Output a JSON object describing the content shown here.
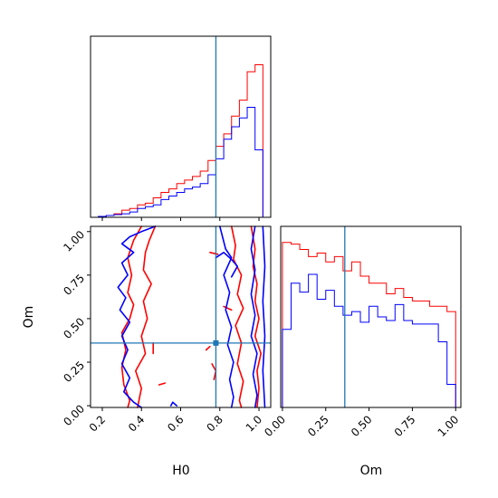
{
  "colors": {
    "series_a": "#ff0000",
    "series_b": "#0000ff",
    "truth": "#1f77b4"
  },
  "chart_data": [
    {
      "panel": "H0 marginal",
      "type": "step-histogram",
      "xlim": [
        0.14,
        1.06
      ],
      "bin_edges": [
        0.18,
        0.22,
        0.26,
        0.3,
        0.34,
        0.38,
        0.42,
        0.46,
        0.5,
        0.54,
        0.58,
        0.62,
        0.66,
        0.7,
        0.74,
        0.78,
        0.82,
        0.86,
        0.9,
        0.94,
        0.98,
        1.02
      ],
      "series": [
        {
          "color": "#ff0000",
          "values": [
            0.005,
            0.01,
            0.02,
            0.04,
            0.05,
            0.07,
            0.08,
            0.11,
            0.14,
            0.16,
            0.19,
            0.21,
            0.23,
            0.26,
            0.32,
            0.4,
            0.47,
            0.57,
            0.66,
            0.82,
            0.86
          ]
        },
        {
          "color": "#0000ff",
          "values": [
            0.005,
            0.01,
            0.015,
            0.02,
            0.03,
            0.05,
            0.06,
            0.07,
            0.1,
            0.12,
            0.14,
            0.16,
            0.17,
            0.19,
            0.24,
            0.33,
            0.44,
            0.51,
            0.56,
            0.62,
            0.38
          ]
        }
      ],
      "truth_x": 0.78,
      "xticks": [
        0.2,
        0.4,
        0.6,
        0.8,
        1.0
      ]
    },
    {
      "panel": "H0 vs Om joint",
      "type": "contour",
      "xlim": [
        0.14,
        1.06
      ],
      "ylim": [
        -0.01,
        1.03
      ],
      "xlabel": "H0",
      "ylabel": "Om",
      "xticks": [
        0.2,
        0.4,
        0.6,
        0.8,
        1.0
      ],
      "xticklabels": [
        "0.2",
        "0.4",
        "0.6",
        "0.8",
        "1.0"
      ],
      "yticks": [
        0.0,
        0.25,
        0.5,
        0.75,
        1.0
      ],
      "yticklabels": [
        "0.00",
        "0.25",
        "0.50",
        "0.75",
        "1.00"
      ],
      "truth": {
        "x": 0.78,
        "y": 0.36
      },
      "series": [
        {
          "color": "#ff0000",
          "contours": [
            [
              [
                0.4,
                1.03
              ],
              [
                0.36,
                0.95
              ],
              [
                0.33,
                0.85
              ],
              [
                0.35,
                0.75
              ],
              [
                0.33,
                0.65
              ],
              [
                0.36,
                0.58
              ],
              [
                0.34,
                0.5
              ],
              [
                0.3,
                0.42
              ],
              [
                0.32,
                0.32
              ],
              [
                0.3,
                0.22
              ],
              [
                0.31,
                0.12
              ],
              [
                0.34,
                0.03
              ],
              [
                0.33,
                -0.01
              ]
            ],
            [
              [
                0.47,
                1.03
              ],
              [
                0.44,
                0.95
              ],
              [
                0.42,
                0.88
              ],
              [
                0.41,
                0.78
              ],
              [
                0.45,
                0.7
              ],
              [
                0.41,
                0.6
              ],
              [
                0.43,
                0.5
              ],
              [
                0.4,
                0.4
              ],
              [
                0.42,
                0.3
              ],
              [
                0.37,
                0.2
              ],
              [
                0.4,
                0.1
              ],
              [
                0.38,
                -0.01
              ]
            ],
            [
              [
                0.86,
                1.03
              ],
              [
                0.88,
                0.92
              ],
              [
                0.87,
                0.84
              ],
              [
                0.91,
                0.75
              ],
              [
                0.89,
                0.64
              ],
              [
                0.92,
                0.56
              ],
              [
                0.88,
                0.46
              ],
              [
                0.91,
                0.36
              ],
              [
                0.89,
                0.24
              ],
              [
                0.92,
                0.14
              ],
              [
                0.9,
                0.03
              ],
              [
                0.91,
                -0.01
              ]
            ],
            [
              [
                0.96,
                1.03
              ],
              [
                0.98,
                0.9
              ],
              [
                0.97,
                0.8
              ],
              [
                0.99,
                0.7
              ],
              [
                0.98,
                0.6
              ],
              [
                1.0,
                0.5
              ],
              [
                0.98,
                0.4
              ],
              [
                1.01,
                0.3
              ],
              [
                0.99,
                0.2
              ],
              [
                1.0,
                0.1
              ],
              [
                0.99,
                -0.01
              ]
            ],
            [
              [
                0.75,
                0.88
              ],
              [
                0.79,
                0.87
              ]
            ],
            [
              [
                0.73,
                0.32
              ],
              [
                0.75,
                0.34
              ]
            ],
            [
              [
                0.76,
                0.24
              ],
              [
                0.78,
                0.2
              ],
              [
                0.77,
                0.15
              ]
            ],
            [
              [
                0.46,
                0.36
              ],
              [
                0.46,
                0.3
              ]
            ],
            [
              [
                0.49,
                0.12
              ],
              [
                0.52,
                0.13
              ]
            ],
            [
              [
                0.82,
                0.57
              ],
              [
                0.86,
                0.55
              ]
            ]
          ]
        },
        {
          "color": "#0000ff",
          "contours": [
            [
              [
                0.47,
                1.03
              ],
              [
                0.4,
                1.0
              ],
              [
                0.34,
                0.97
              ],
              [
                0.3,
                0.93
              ],
              [
                0.36,
                0.88
              ],
              [
                0.3,
                0.82
              ],
              [
                0.33,
                0.75
              ],
              [
                0.28,
                0.68
              ],
              [
                0.32,
                0.62
              ],
              [
                0.29,
                0.55
              ],
              [
                0.34,
                0.48
              ],
              [
                0.3,
                0.4
              ],
              [
                0.33,
                0.32
              ],
              [
                0.3,
                0.24
              ],
              [
                0.34,
                0.16
              ],
              [
                0.31,
                0.08
              ],
              [
                0.36,
                0.02
              ],
              [
                0.4,
                -0.01
              ]
            ],
            [
              [
                0.55,
                0.0
              ],
              [
                0.56,
                0.02
              ],
              [
                0.58,
                0.0
              ]
            ],
            [
              [
                0.8,
                1.03
              ],
              [
                0.83,
                0.9
              ],
              [
                0.86,
                0.85
              ],
              [
                0.82,
                0.75
              ],
              [
                0.85,
                0.65
              ],
              [
                0.83,
                0.55
              ],
              [
                0.86,
                0.45
              ],
              [
                0.84,
                0.35
              ],
              [
                0.87,
                0.25
              ],
              [
                0.85,
                0.15
              ],
              [
                0.87,
                0.05
              ],
              [
                0.86,
                -0.01
              ]
            ],
            [
              [
                0.98,
                1.03
              ],
              [
                0.96,
                0.9
              ],
              [
                0.98,
                0.78
              ],
              [
                0.96,
                0.64
              ],
              [
                0.98,
                0.52
              ],
              [
                0.96,
                0.4
              ],
              [
                0.99,
                0.3
              ],
              [
                0.97,
                0.18
              ],
              [
                0.99,
                0.06
              ],
              [
                0.98,
                -0.01
              ]
            ],
            [
              [
                1.02,
                1.03
              ],
              [
                1.03,
                0.8
              ],
              [
                1.02,
                0.6
              ],
              [
                1.03,
                0.4
              ],
              [
                1.02,
                0.2
              ],
              [
                1.03,
                -0.01
              ]
            ],
            [
              [
                0.78,
                0.85
              ],
              [
                0.82,
                0.88
              ],
              [
                0.86,
                0.84
              ],
              [
                0.89,
                0.8
              ],
              [
                0.86,
                0.74
              ]
            ]
          ]
        }
      ]
    },
    {
      "panel": "Om marginal",
      "type": "step-histogram",
      "xlim": [
        -0.01,
        1.03
      ],
      "xlabel": "Om",
      "xticks": [
        0.0,
        0.25,
        0.5,
        0.75,
        1.0
      ],
      "xticklabels": [
        "0.00",
        "0.25",
        "0.50",
        "0.75",
        "1.00"
      ],
      "bin_edges": [
        0.0,
        0.05,
        0.1,
        0.15,
        0.2,
        0.25,
        0.3,
        0.35,
        0.4,
        0.45,
        0.5,
        0.55,
        0.6,
        0.65,
        0.7,
        0.75,
        0.8,
        0.85,
        0.9,
        0.95,
        1.0
      ],
      "series": [
        {
          "color": "#ff0000",
          "values": [
            0.93,
            0.92,
            0.89,
            0.85,
            0.87,
            0.82,
            0.85,
            0.77,
            0.82,
            0.74,
            0.7,
            0.7,
            0.64,
            0.67,
            0.62,
            0.6,
            0.6,
            0.57,
            0.57,
            0.54
          ]
        },
        {
          "color": "#0000ff",
          "values": [
            0.44,
            0.7,
            0.65,
            0.75,
            0.61,
            0.66,
            0.57,
            0.52,
            0.54,
            0.48,
            0.57,
            0.51,
            0.49,
            0.58,
            0.49,
            0.47,
            0.47,
            0.47,
            0.37,
            0.13
          ]
        }
      ],
      "truth_x": 0.36
    }
  ]
}
